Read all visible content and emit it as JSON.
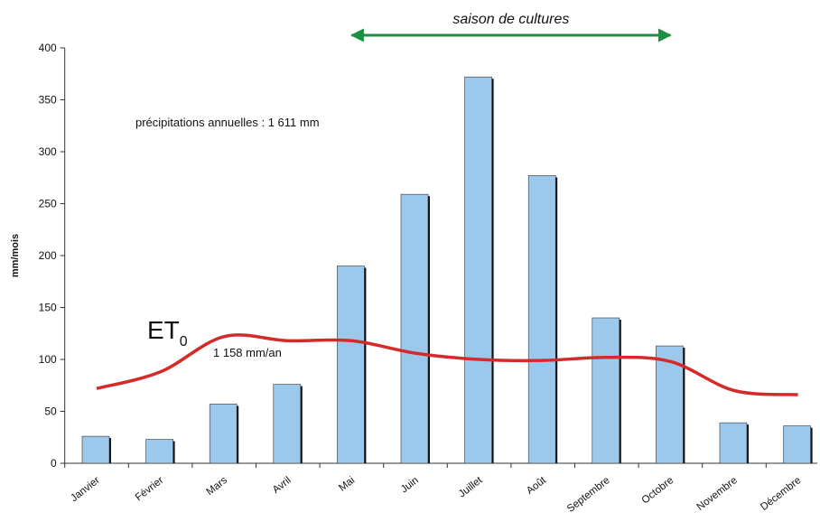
{
  "chart_data": {
    "type": "bar",
    "title": "saison de cultures",
    "season": {
      "from": "Mai",
      "to": "Octobre",
      "color": "#1a9040"
    },
    "annotation": "précipitations annuelles : 1 611 mm",
    "ylabel": "mm/mois",
    "categories": [
      "Janvier",
      "Février",
      "Mars",
      "Avril",
      "Mai",
      "Juin",
      "Juillet",
      "Août",
      "Septembre",
      "Octobre",
      "Novembre",
      "Décembre"
    ],
    "values": [
      26,
      23,
      57,
      76,
      190,
      259,
      372,
      277,
      140,
      113,
      39,
      36
    ],
    "color": "#9cc8ec",
    "line": {
      "name": "ET",
      "subscript": "0",
      "total_label": "1 158 mm/an",
      "color": "#d42a2a",
      "values": [
        72,
        88,
        122,
        118,
        118,
        106,
        100,
        99,
        102,
        98,
        70,
        66
      ]
    },
    "ylim": [
      0,
      400
    ],
    "yticks": [
      0,
      50,
      100,
      150,
      200,
      250,
      300,
      350,
      400
    ]
  }
}
